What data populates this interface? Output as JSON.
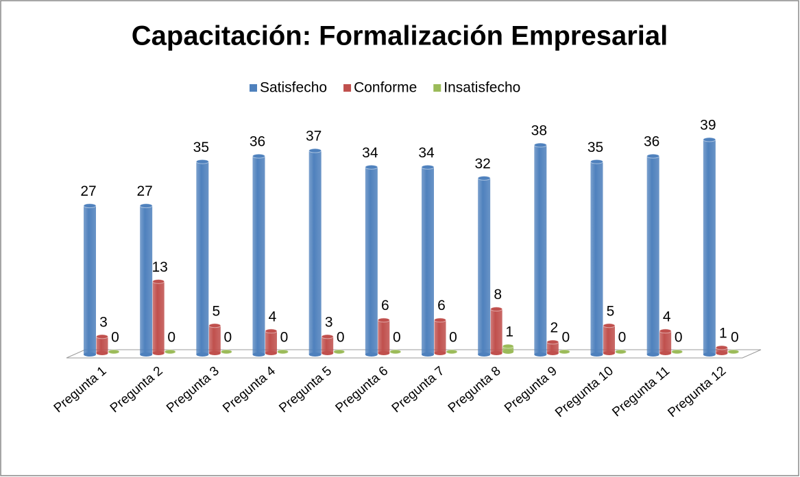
{
  "chart_data": {
    "type": "bar3d",
    "title": "Capacitación: Formalización Empresarial",
    "categories": [
      "Pregunta 1",
      "Pregunta 2",
      "Pregunta 3",
      "Pregunta 4",
      "Pregunta 5",
      "Pregunta 6",
      "Pregunta 7",
      "Pregunta 8",
      "Pregunta 9",
      "Pregunta 10",
      "Pregunta 11",
      "Pregunta 12"
    ],
    "series": [
      {
        "name": "Satisfecho",
        "color": "#4f81bd",
        "values": [
          27,
          27,
          35,
          36,
          37,
          34,
          34,
          32,
          38,
          35,
          36,
          39
        ]
      },
      {
        "name": "Conforme",
        "color": "#c0504d",
        "values": [
          3,
          13,
          5,
          4,
          3,
          6,
          6,
          8,
          2,
          5,
          4,
          1
        ]
      },
      {
        "name": "Insatisfecho",
        "color": "#9bbb59",
        "values": [
          0,
          0,
          0,
          0,
          0,
          0,
          0,
          1,
          0,
          0,
          0,
          0
        ]
      }
    ],
    "legend": "top"
  }
}
